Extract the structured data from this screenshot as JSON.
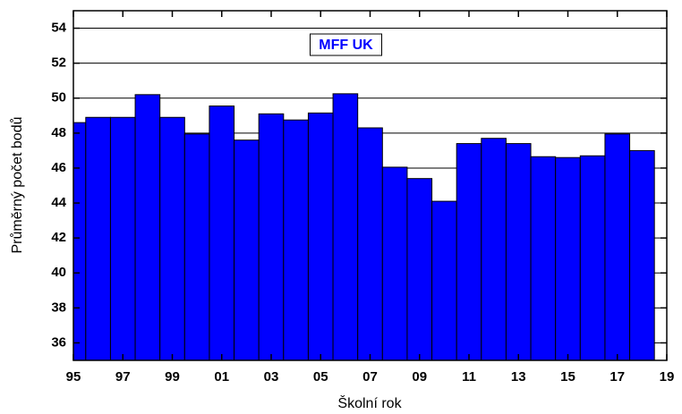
{
  "chart_data": {
    "type": "bar",
    "x_label": "Školní rok",
    "y_label": "Průměrný počet bodů",
    "x": [
      1995,
      1996,
      1997,
      1998,
      1999,
      2000,
      2001,
      2002,
      2003,
      2004,
      2005,
      2006,
      2007,
      2008,
      2009,
      2010,
      2011,
      2012,
      2013,
      2014,
      2015,
      2016,
      2017,
      2018
    ],
    "series": [
      {
        "name": "MFF UK",
        "color": "#0000ff",
        "values": [
          48.6,
          48.9,
          48.9,
          50.2,
          48.9,
          47.95,
          49.55,
          47.6,
          49.1,
          48.75,
          49.15,
          50.25,
          48.3,
          46.05,
          45.4,
          44.1,
          47.4,
          47.7,
          47.4,
          46.65,
          46.6,
          46.7,
          47.95,
          47.0
        ]
      }
    ],
    "xlim": [
      1995,
      2019
    ],
    "xticks": [
      {
        "value": 1995,
        "label": "95"
      },
      {
        "value": 1997,
        "label": "97"
      },
      {
        "value": 1999,
        "label": "99"
      },
      {
        "value": 2001,
        "label": "01"
      },
      {
        "value": 2003,
        "label": "03"
      },
      {
        "value": 2005,
        "label": "05"
      },
      {
        "value": 2007,
        "label": "07"
      },
      {
        "value": 2009,
        "label": "09"
      },
      {
        "value": 2011,
        "label": "11"
      },
      {
        "value": 2013,
        "label": "13"
      },
      {
        "value": 2015,
        "label": "15"
      },
      {
        "value": 2017,
        "label": "17"
      },
      {
        "value": 2019,
        "label": "19"
      }
    ],
    "ylim": [
      35,
      55
    ],
    "yticks": [
      36,
      38,
      40,
      42,
      44,
      46,
      48,
      50,
      52,
      54
    ],
    "grid": true
  }
}
